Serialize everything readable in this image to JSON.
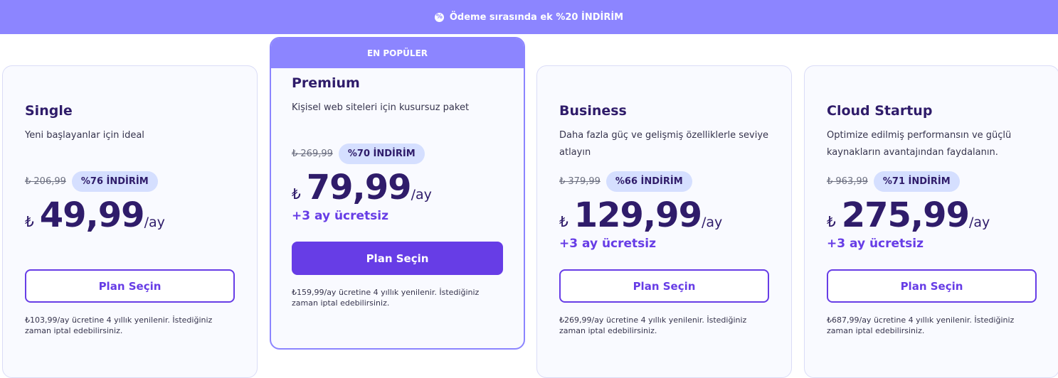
{
  "banner": {
    "icon": "discount-badge-icon",
    "text": "Ödeme sırasında ek %20 İNDİRİM"
  },
  "popular_label": "EN POPÜLER",
  "plans": [
    {
      "name": "Single",
      "desc": "Yeni başlayanlar için ideal",
      "old_price": "₺ 206,99",
      "discount": "%76 İNDİRİM",
      "currency": "₺",
      "price": "49,99",
      "per": "/ay",
      "bonus": "",
      "button": "Plan Seçin",
      "note": "₺103,99/ay ücretine 4 yıllık yenilenir. İstediğiniz zaman iptal edebilirsiniz."
    },
    {
      "name": "Premium",
      "desc": "Kişisel web siteleri için kusursuz paket",
      "old_price": "₺ 269,99",
      "discount": "%70 İNDİRİM",
      "currency": "₺",
      "price": "79,99",
      "per": "/ay",
      "bonus": "+3 ay ücretsiz",
      "button": "Plan Seçin",
      "note": "₺159,99/ay ücretine 4 yıllık yenilenir. İstediğiniz zaman iptal edebilirsiniz."
    },
    {
      "name": "Business",
      "desc": "Daha fazla güç ve gelişmiş özelliklerle seviye atlayın",
      "old_price": "₺ 379,99",
      "discount": "%66 İNDİRİM",
      "currency": "₺",
      "price": "129,99",
      "per": "/ay",
      "bonus": "+3 ay ücretsiz",
      "button": "Plan Seçin",
      "note": "₺269,99/ay ücretine 4 yıllık yenilenir. İstediğiniz zaman iptal edebilirsiniz."
    },
    {
      "name": "Cloud Startup",
      "desc": "Optimize edilmiş performansın ve güçlü kaynakların avantajından faydalanın.",
      "old_price": "₺ 963,99",
      "discount": "%71 İNDİRİM",
      "currency": "₺",
      "price": "275,99",
      "per": "/ay",
      "bonus": "+3 ay ücretsiz",
      "button": "Plan Seçin",
      "note": "₺687,99/ay ücretine 4 yıllık yenilenir. İstediğiniz zaman iptal edebilirsiniz."
    }
  ],
  "colors": {
    "banner": "#8c85ff",
    "accent": "#673de6",
    "text": "#2f1c6a",
    "badge": "#d5dfff"
  }
}
